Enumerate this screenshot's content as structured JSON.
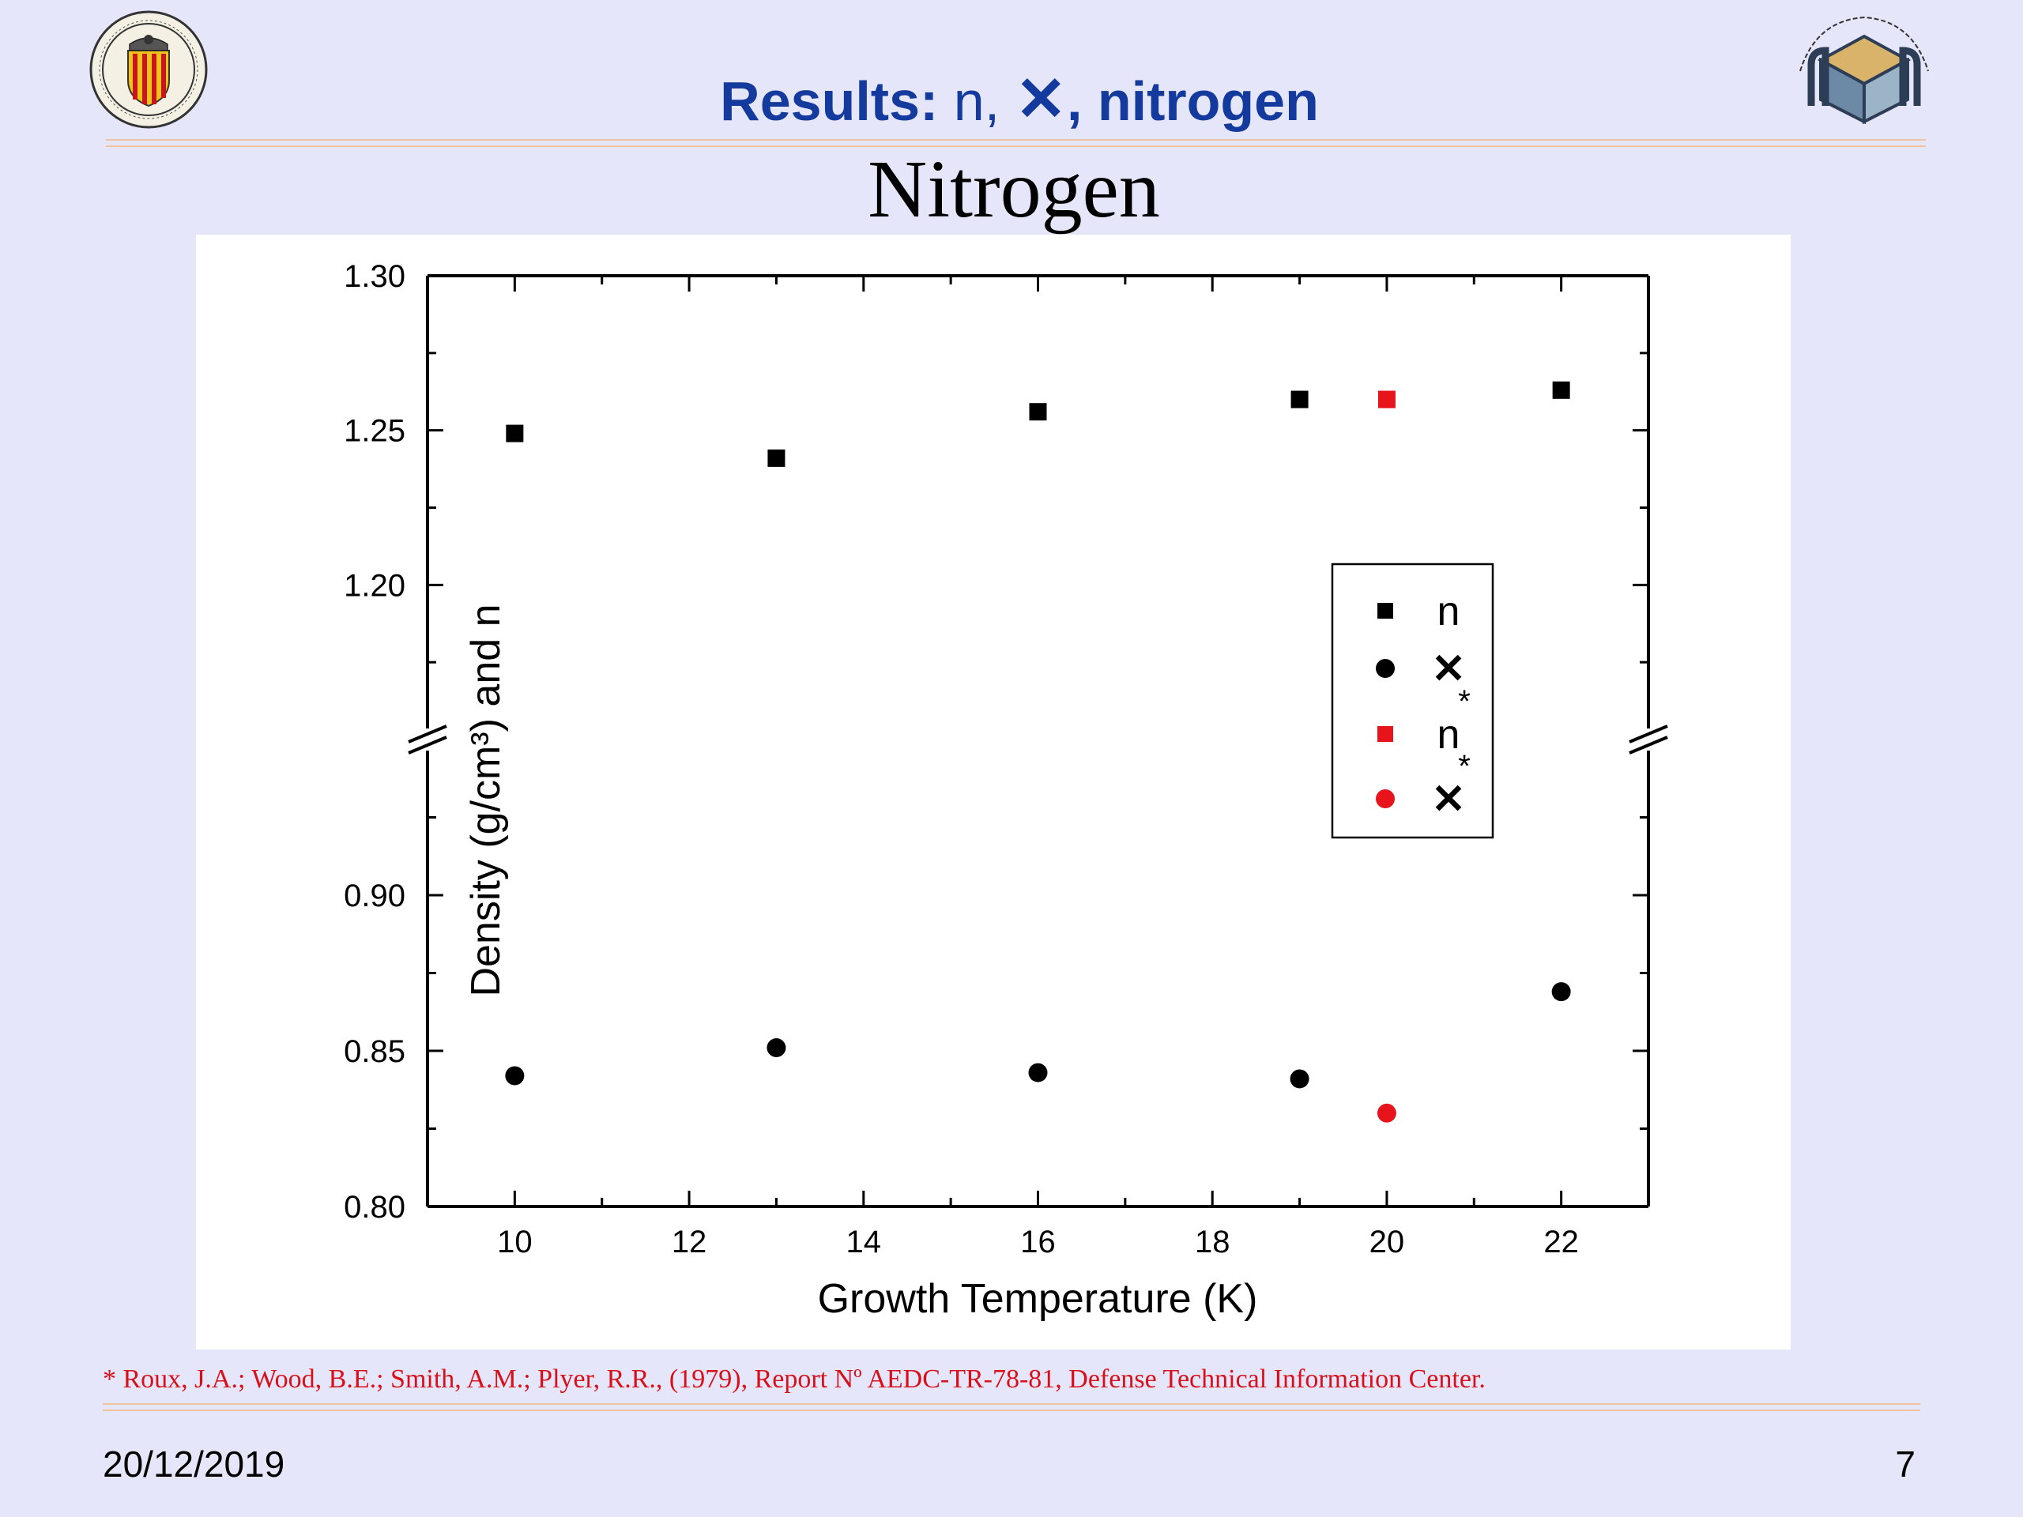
{
  "header": {
    "title_prefix": "Results:",
    "title_symbol_n": " n, ",
    "title_symbol_x": "✕",
    "title_suffix": ", nitrogen"
  },
  "footer": {
    "reference": "* Roux, J.A.; Wood, B.E.; Smith, A.M.; Plyer, R.R., (1979), Report Nº AEDC-TR-78-81, Defense Technical Information Center.",
    "date": "20/12/2019",
    "page": "7"
  },
  "chart_data": {
    "type": "scatter",
    "title": "Nitrogen",
    "xlabel": "Growth Temperature (K)",
    "ylabel": "Density (g/cm³) and n",
    "xlim": [
      9,
      23
    ],
    "ylim_lower": [
      0.8,
      0.95
    ],
    "ylim_upper": [
      1.15,
      1.3
    ],
    "axis_break": "0.95–1.15",
    "x_ticks": [
      "10",
      "12",
      "14",
      "16",
      "18",
      "20",
      "22"
    ],
    "y_ticks": [
      "0.80",
      "0.85",
      "0.90",
      "1.20",
      "1.25",
      "1.30"
    ],
    "grid": false,
    "legend_position": "right",
    "series": [
      {
        "name": "n",
        "marker": "square",
        "color": "#000000",
        "x": [
          10,
          13,
          16,
          19,
          22
        ],
        "y": [
          1.249,
          1.241,
          1.256,
          1.26,
          1.263
        ]
      },
      {
        "name": "✕",
        "marker": "circle",
        "color": "#000000",
        "x": [
          10,
          13,
          16,
          19,
          22
        ],
        "y": [
          0.842,
          0.851,
          0.843,
          0.841,
          0.869
        ]
      },
      {
        "name": "n*",
        "marker": "square",
        "color": "#e8141c",
        "x": [
          20
        ],
        "y": [
          1.26
        ]
      },
      {
        "name": "✕*",
        "marker": "circle",
        "color": "#e8141c",
        "x": [
          20
        ],
        "y": [
          0.83
        ]
      }
    ],
    "legend": [
      {
        "label": "n",
        "sup": ""
      },
      {
        "label": "✕",
        "sup": ""
      },
      {
        "label": "n",
        "sup": "*"
      },
      {
        "label": "✕",
        "sup": "*"
      }
    ]
  }
}
